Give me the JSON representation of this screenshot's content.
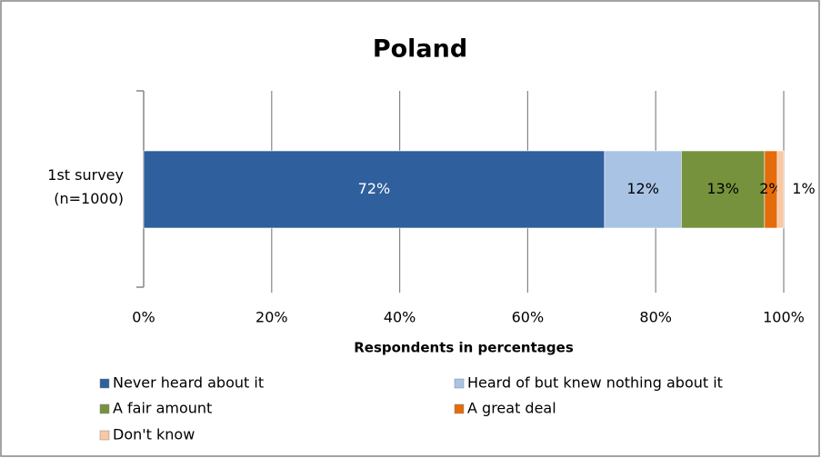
{
  "chart_data": {
    "type": "stacked-bar-horizontal",
    "title": "Poland",
    "categories": [
      "1st survey (n=1000)"
    ],
    "series": [
      {
        "name": "Never heard about it",
        "color": "#2f5f9c",
        "values": [
          72
        ],
        "value_labels": [
          "72%"
        ]
      },
      {
        "name": "Heard of but knew nothing about it",
        "color": "#a9c3e5",
        "values": [
          12
        ],
        "value_labels": [
          "12%"
        ]
      },
      {
        "name": "A fair amount",
        "color": "#76923c",
        "values": [
          13
        ],
        "value_labels": [
          "13%"
        ]
      },
      {
        "name": "A great deal",
        "color": "#e46c0a",
        "values": [
          2
        ],
        "value_labels": [
          "2%"
        ]
      },
      {
        "name": "Don't know",
        "color": "#f9c8a4",
        "values": [
          1
        ],
        "value_labels": [
          "1%"
        ]
      }
    ],
    "xlabel": "Respondents in percentages",
    "xlim": [
      0,
      100
    ],
    "xticks": [
      {
        "value": 0,
        "label": "0%"
      },
      {
        "value": 20,
        "label": "20%"
      },
      {
        "value": 40,
        "label": "40%"
      },
      {
        "value": 60,
        "label": "60%"
      },
      {
        "value": 80,
        "label": "80%"
      },
      {
        "value": 100,
        "label": "100%"
      }
    ],
    "grid": true
  }
}
